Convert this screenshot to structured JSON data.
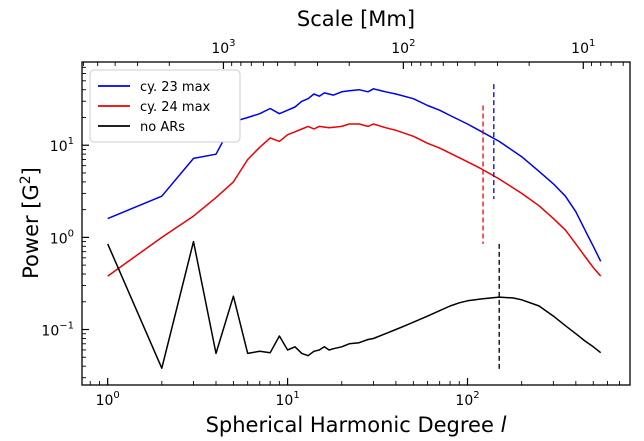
{
  "chart_data": {
    "type": "line",
    "xlabel": "Spherical Harmonic Degree",
    "xlabel_symbol": "l",
    "ylabel": "Power [G",
    "ylabel_sup": "2",
    "ylabel_close": "]",
    "top_xlabel": "Scale [Mm]",
    "x_scale": "log",
    "y_scale": "log",
    "xlim": [
      0.72,
      800
    ],
    "ylim": [
      0.025,
      80
    ],
    "x_ticks": [
      {
        "value": 1,
        "base": "10",
        "exp": "0"
      },
      {
        "value": 10,
        "base": "10",
        "exp": "1"
      },
      {
        "value": 100,
        "base": "10",
        "exp": "2"
      }
    ],
    "y_ticks": [
      {
        "value": 0.1,
        "base": "10",
        "exp": "−1"
      },
      {
        "value": 1,
        "base": "10",
        "exp": "0"
      },
      {
        "value": 10,
        "base": "10",
        "exp": "1"
      }
    ],
    "top_ticks": [
      {
        "value": 1000,
        "base": "10",
        "exp": "3"
      },
      {
        "value": 100,
        "base": "10",
        "exp": "2"
      },
      {
        "value": 10,
        "base": "10",
        "exp": "1"
      }
    ],
    "legend_position": "top-left",
    "series": [
      {
        "name": "cy. 23 max",
        "color": "#0000ee",
        "points": [
          [
            1,
            1.6
          ],
          [
            2,
            2.8
          ],
          [
            3,
            7.2
          ],
          [
            4,
            8.0
          ],
          [
            5,
            18
          ],
          [
            6,
            20
          ],
          [
            7,
            22
          ],
          [
            8,
            25
          ],
          [
            9,
            22
          ],
          [
            10,
            24
          ],
          [
            11,
            26
          ],
          [
            12,
            30
          ],
          [
            13,
            32
          ],
          [
            14,
            36
          ],
          [
            15,
            34
          ],
          [
            16,
            37
          ],
          [
            18,
            35
          ],
          [
            20,
            38
          ],
          [
            22,
            39
          ],
          [
            25,
            40
          ],
          [
            28,
            38
          ],
          [
            30,
            41
          ],
          [
            35,
            38
          ],
          [
            40,
            36
          ],
          [
            50,
            32
          ],
          [
            60,
            27
          ],
          [
            70,
            24
          ],
          [
            80,
            21
          ],
          [
            100,
            17
          ],
          [
            120,
            14
          ],
          [
            150,
            11
          ],
          [
            200,
            7.5
          ],
          [
            250,
            5.2
          ],
          [
            300,
            3.8
          ],
          [
            350,
            2.8
          ],
          [
            400,
            1.9
          ],
          [
            450,
            1.2
          ],
          [
            500,
            0.8
          ],
          [
            550,
            0.55
          ]
        ]
      },
      {
        "name": "cy. 24 max",
        "color": "#ee0000",
        "points": [
          [
            1,
            0.38
          ],
          [
            2,
            1.0
          ],
          [
            3,
            1.7
          ],
          [
            4,
            2.7
          ],
          [
            5,
            4.0
          ],
          [
            6,
            7.0
          ],
          [
            7,
            9.5
          ],
          [
            8,
            12
          ],
          [
            9,
            11
          ],
          [
            10,
            13
          ],
          [
            11,
            14
          ],
          [
            12,
            15
          ],
          [
            13,
            16
          ],
          [
            14,
            15
          ],
          [
            15,
            16
          ],
          [
            17,
            15.5
          ],
          [
            20,
            16
          ],
          [
            22,
            17
          ],
          [
            25,
            17
          ],
          [
            28,
            16
          ],
          [
            30,
            17
          ],
          [
            35,
            15.5
          ],
          [
            40,
            14.5
          ],
          [
            50,
            12.5
          ],
          [
            60,
            10.5
          ],
          [
            70,
            9.3
          ],
          [
            80,
            8.2
          ],
          [
            100,
            6.6
          ],
          [
            120,
            5.5
          ],
          [
            150,
            4.3
          ],
          [
            200,
            3.0
          ],
          [
            250,
            2.2
          ],
          [
            300,
            1.6
          ],
          [
            350,
            1.2
          ],
          [
            400,
            0.85
          ],
          [
            450,
            0.62
          ],
          [
            500,
            0.47
          ],
          [
            550,
            0.38
          ]
        ]
      },
      {
        "name": "no ARs",
        "color": "#000000",
        "points": [
          [
            1,
            0.85
          ],
          [
            2,
            0.038
          ],
          [
            3,
            0.9
          ],
          [
            4,
            0.055
          ],
          [
            5,
            0.23
          ],
          [
            6,
            0.055
          ],
          [
            7,
            0.058
          ],
          [
            8,
            0.056
          ],
          [
            9,
            0.085
          ],
          [
            10,
            0.06
          ],
          [
            11,
            0.065
          ],
          [
            12,
            0.055
          ],
          [
            13,
            0.052
          ],
          [
            14,
            0.058
          ],
          [
            15,
            0.06
          ],
          [
            16,
            0.065
          ],
          [
            17,
            0.06
          ],
          [
            18,
            0.062
          ],
          [
            20,
            0.065
          ],
          [
            22,
            0.07
          ],
          [
            25,
            0.072
          ],
          [
            28,
            0.078
          ],
          [
            30,
            0.08
          ],
          [
            35,
            0.09
          ],
          [
            40,
            0.1
          ],
          [
            45,
            0.11
          ],
          [
            50,
            0.12
          ],
          [
            60,
            0.14
          ],
          [
            70,
            0.16
          ],
          [
            80,
            0.18
          ],
          [
            90,
            0.195
          ],
          [
            100,
            0.205
          ],
          [
            120,
            0.215
          ],
          [
            150,
            0.225
          ],
          [
            180,
            0.22
          ],
          [
            200,
            0.21
          ],
          [
            250,
            0.18
          ],
          [
            300,
            0.14
          ],
          [
            350,
            0.11
          ],
          [
            400,
            0.09
          ],
          [
            450,
            0.075
          ],
          [
            500,
            0.065
          ],
          [
            550,
            0.056
          ]
        ]
      }
    ],
    "markers": [
      {
        "color": "#0000ee",
        "x": 140,
        "y_range": [
          2.6,
          46
        ]
      },
      {
        "color": "#ee0000",
        "x": 122,
        "y_range": [
          0.85,
          27
        ]
      },
      {
        "color": "#000000",
        "x": 150,
        "y_range": [
          0.035,
          0.85
        ]
      }
    ]
  }
}
